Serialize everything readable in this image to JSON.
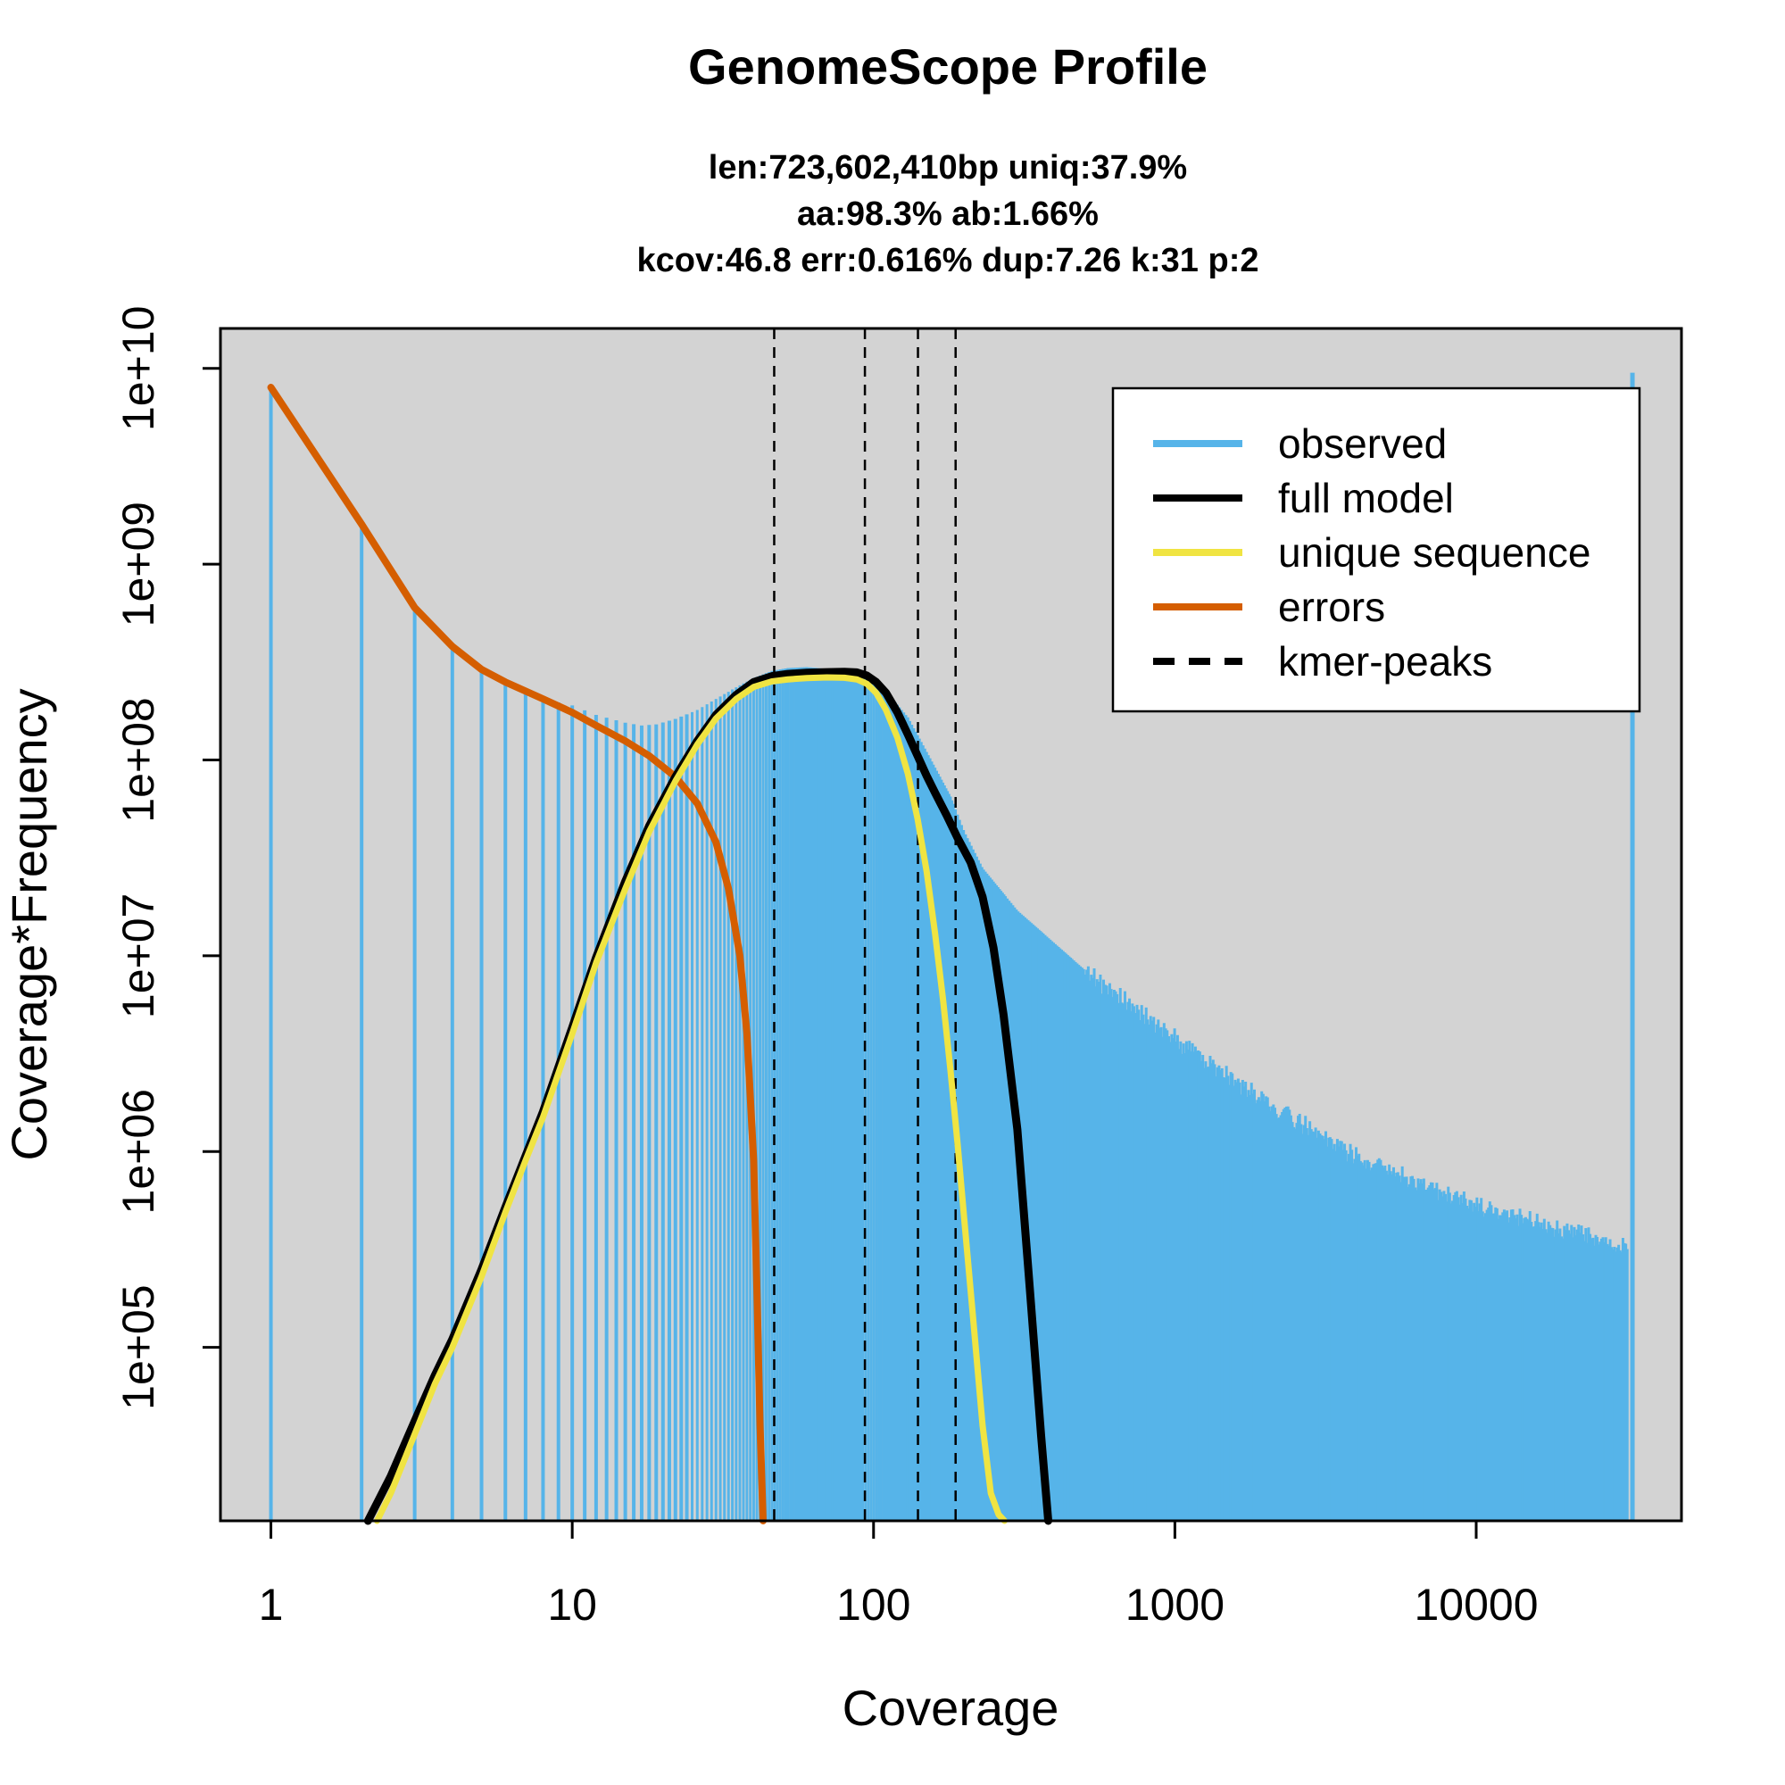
{
  "chart_data": {
    "type": "line",
    "title": "GenomeScope Profile",
    "subtitle_lines": [
      "len:723,602,410bp uniq:37.9%",
      "aa:98.3% ab:1.66%",
      "kcov:46.8 err:0.616%  dup:7.26  k:31 p:2"
    ],
    "xlabel": "Coverage",
    "ylabel": "Coverage*Frequency",
    "x_scale": "log",
    "y_scale": "log",
    "xlim": [
      0.68,
      48000
    ],
    "ylim": [
      13000,
      16000000000
    ],
    "x_ticks": [
      {
        "value": 1,
        "label": "1"
      },
      {
        "value": 10,
        "label": "10"
      },
      {
        "value": 100,
        "label": "100"
      },
      {
        "value": 1000,
        "label": "1000"
      },
      {
        "value": 10000,
        "label": "10000"
      }
    ],
    "y_ticks": [
      {
        "value": 100000,
        "label": "1e+05"
      },
      {
        "value": 1000000,
        "label": "1e+06"
      },
      {
        "value": 10000000,
        "label": "1e+07"
      },
      {
        "value": 100000000,
        "label": "1e+08"
      },
      {
        "value": 1000000000,
        "label": "1e+09"
      },
      {
        "value": 10000000000,
        "label": "1e+10"
      }
    ],
    "plot_background": "#d3d3d3",
    "grid": false,
    "legend_position": "top-right",
    "legend": [
      {
        "label": "observed",
        "color": "#56B4E9",
        "style": "solid"
      },
      {
        "label": "full model",
        "color": "#000000",
        "style": "solid"
      },
      {
        "label": "unique sequence",
        "color": "#F0E442",
        "style": "solid"
      },
      {
        "label": "errors",
        "color": "#D55E00",
        "style": "solid"
      },
      {
        "label": "kmer-peaks",
        "color": "#000000",
        "style": "dashed"
      }
    ],
    "kmer_peaks": [
      46.8,
      93.6,
      140.4,
      187.2
    ],
    "observed_color": "#56B4E9",
    "observed_anchors": {
      "x": [
        1,
        2,
        3,
        4,
        5,
        6,
        8,
        10,
        12,
        15,
        17,
        19,
        22,
        26,
        30,
        35,
        40,
        46,
        52,
        60,
        70,
        80,
        90,
        100,
        110,
        130,
        150,
        180,
        200,
        230,
        300,
        500,
        1000,
        2000,
        4000,
        8000,
        15000,
        32000
      ],
      "y": [
        8000000000,
        1600000000,
        600000000,
        380000000,
        290000000,
        250000000,
        205000000,
        190000000,
        170000000,
        155000000,
        150000000,
        152000000,
        162000000,
        180000000,
        205000000,
        235000000,
        262000000,
        285000000,
        295000000,
        298000000,
        292000000,
        282000000,
        268000000,
        250000000,
        225000000,
        165000000,
        110000000,
        65000000,
        43000000,
        28000000,
        17000000,
        8500000,
        3800000,
        1800000,
        950000,
        600000,
        450000,
        320000
      ]
    },
    "observed_last_spike": {
      "x": 33000,
      "y": 9500000000
    },
    "series": [
      {
        "name": "full model",
        "color": "#000000",
        "x": [
          2.1,
          2.5,
          3,
          3.5,
          4,
          5,
          6,
          7,
          8,
          10,
          12,
          15,
          18,
          22,
          26,
          30,
          35,
          40,
          46,
          52,
          60,
          70,
          80,
          88,
          95,
          102,
          110,
          120,
          130,
          140,
          150,
          160,
          175,
          190,
          210,
          230,
          250,
          270,
          300,
          330,
          360,
          380
        ],
        "y": [
          13000,
          22000,
          42000,
          72000,
          110000,
          250000,
          520000,
          950000,
          1600000,
          4300000,
          9800000,
          24000000,
          46000000,
          82000000,
          125000000,
          170000000,
          215000000,
          250000000,
          268000000,
          275000000,
          279000000,
          281000000,
          282000000,
          280000000,
          270000000,
          250000000,
          220000000,
          175000000,
          135000000,
          105000000,
          83000000,
          68000000,
          52000000,
          40000000,
          30000000,
          20000000,
          11000000,
          5000000,
          1300000,
          200000,
          35000,
          13000
        ]
      },
      {
        "name": "unique sequence",
        "color": "#F0E442",
        "x": [
          2.25,
          2.5,
          3,
          3.5,
          4,
          5,
          6,
          7,
          8,
          10,
          12,
          15,
          18,
          22,
          26,
          30,
          35,
          40,
          46,
          52,
          60,
          70,
          80,
          88,
          95,
          102,
          110,
          120,
          130,
          140,
          150,
          160,
          170,
          180,
          190,
          200,
          215,
          230,
          245,
          260,
          272
        ],
        "y": [
          13000,
          18000,
          36000,
          65000,
          100000,
          230000,
          490000,
          900000,
          1500000,
          4000000,
          9200000,
          22000000,
          43000000,
          78000000,
          120000000,
          163000000,
          205000000,
          236000000,
          252000000,
          258000000,
          262000000,
          264000000,
          263000000,
          258000000,
          245000000,
          220000000,
          180000000,
          130000000,
          85000000,
          50000000,
          27000000,
          13000000,
          6000000,
          2600000,
          1100000,
          450000,
          130000,
          40000,
          18000,
          14000,
          13000
        ]
      },
      {
        "name": "errors",
        "color": "#D55E00",
        "x": [
          1,
          2,
          3,
          4,
          5,
          6,
          8,
          10,
          12,
          15,
          18,
          22,
          26,
          30,
          33,
          36,
          38,
          40,
          41,
          42,
          43
        ],
        "y": [
          8000000000,
          1600000000,
          600000000,
          380000000,
          290000000,
          250000000,
          205000000,
          175000000,
          150000000,
          125000000,
          105000000,
          82000000,
          60000000,
          38000000,
          22000000,
          10000000,
          4000000,
          900000,
          200000,
          40000,
          13000
        ]
      }
    ]
  }
}
